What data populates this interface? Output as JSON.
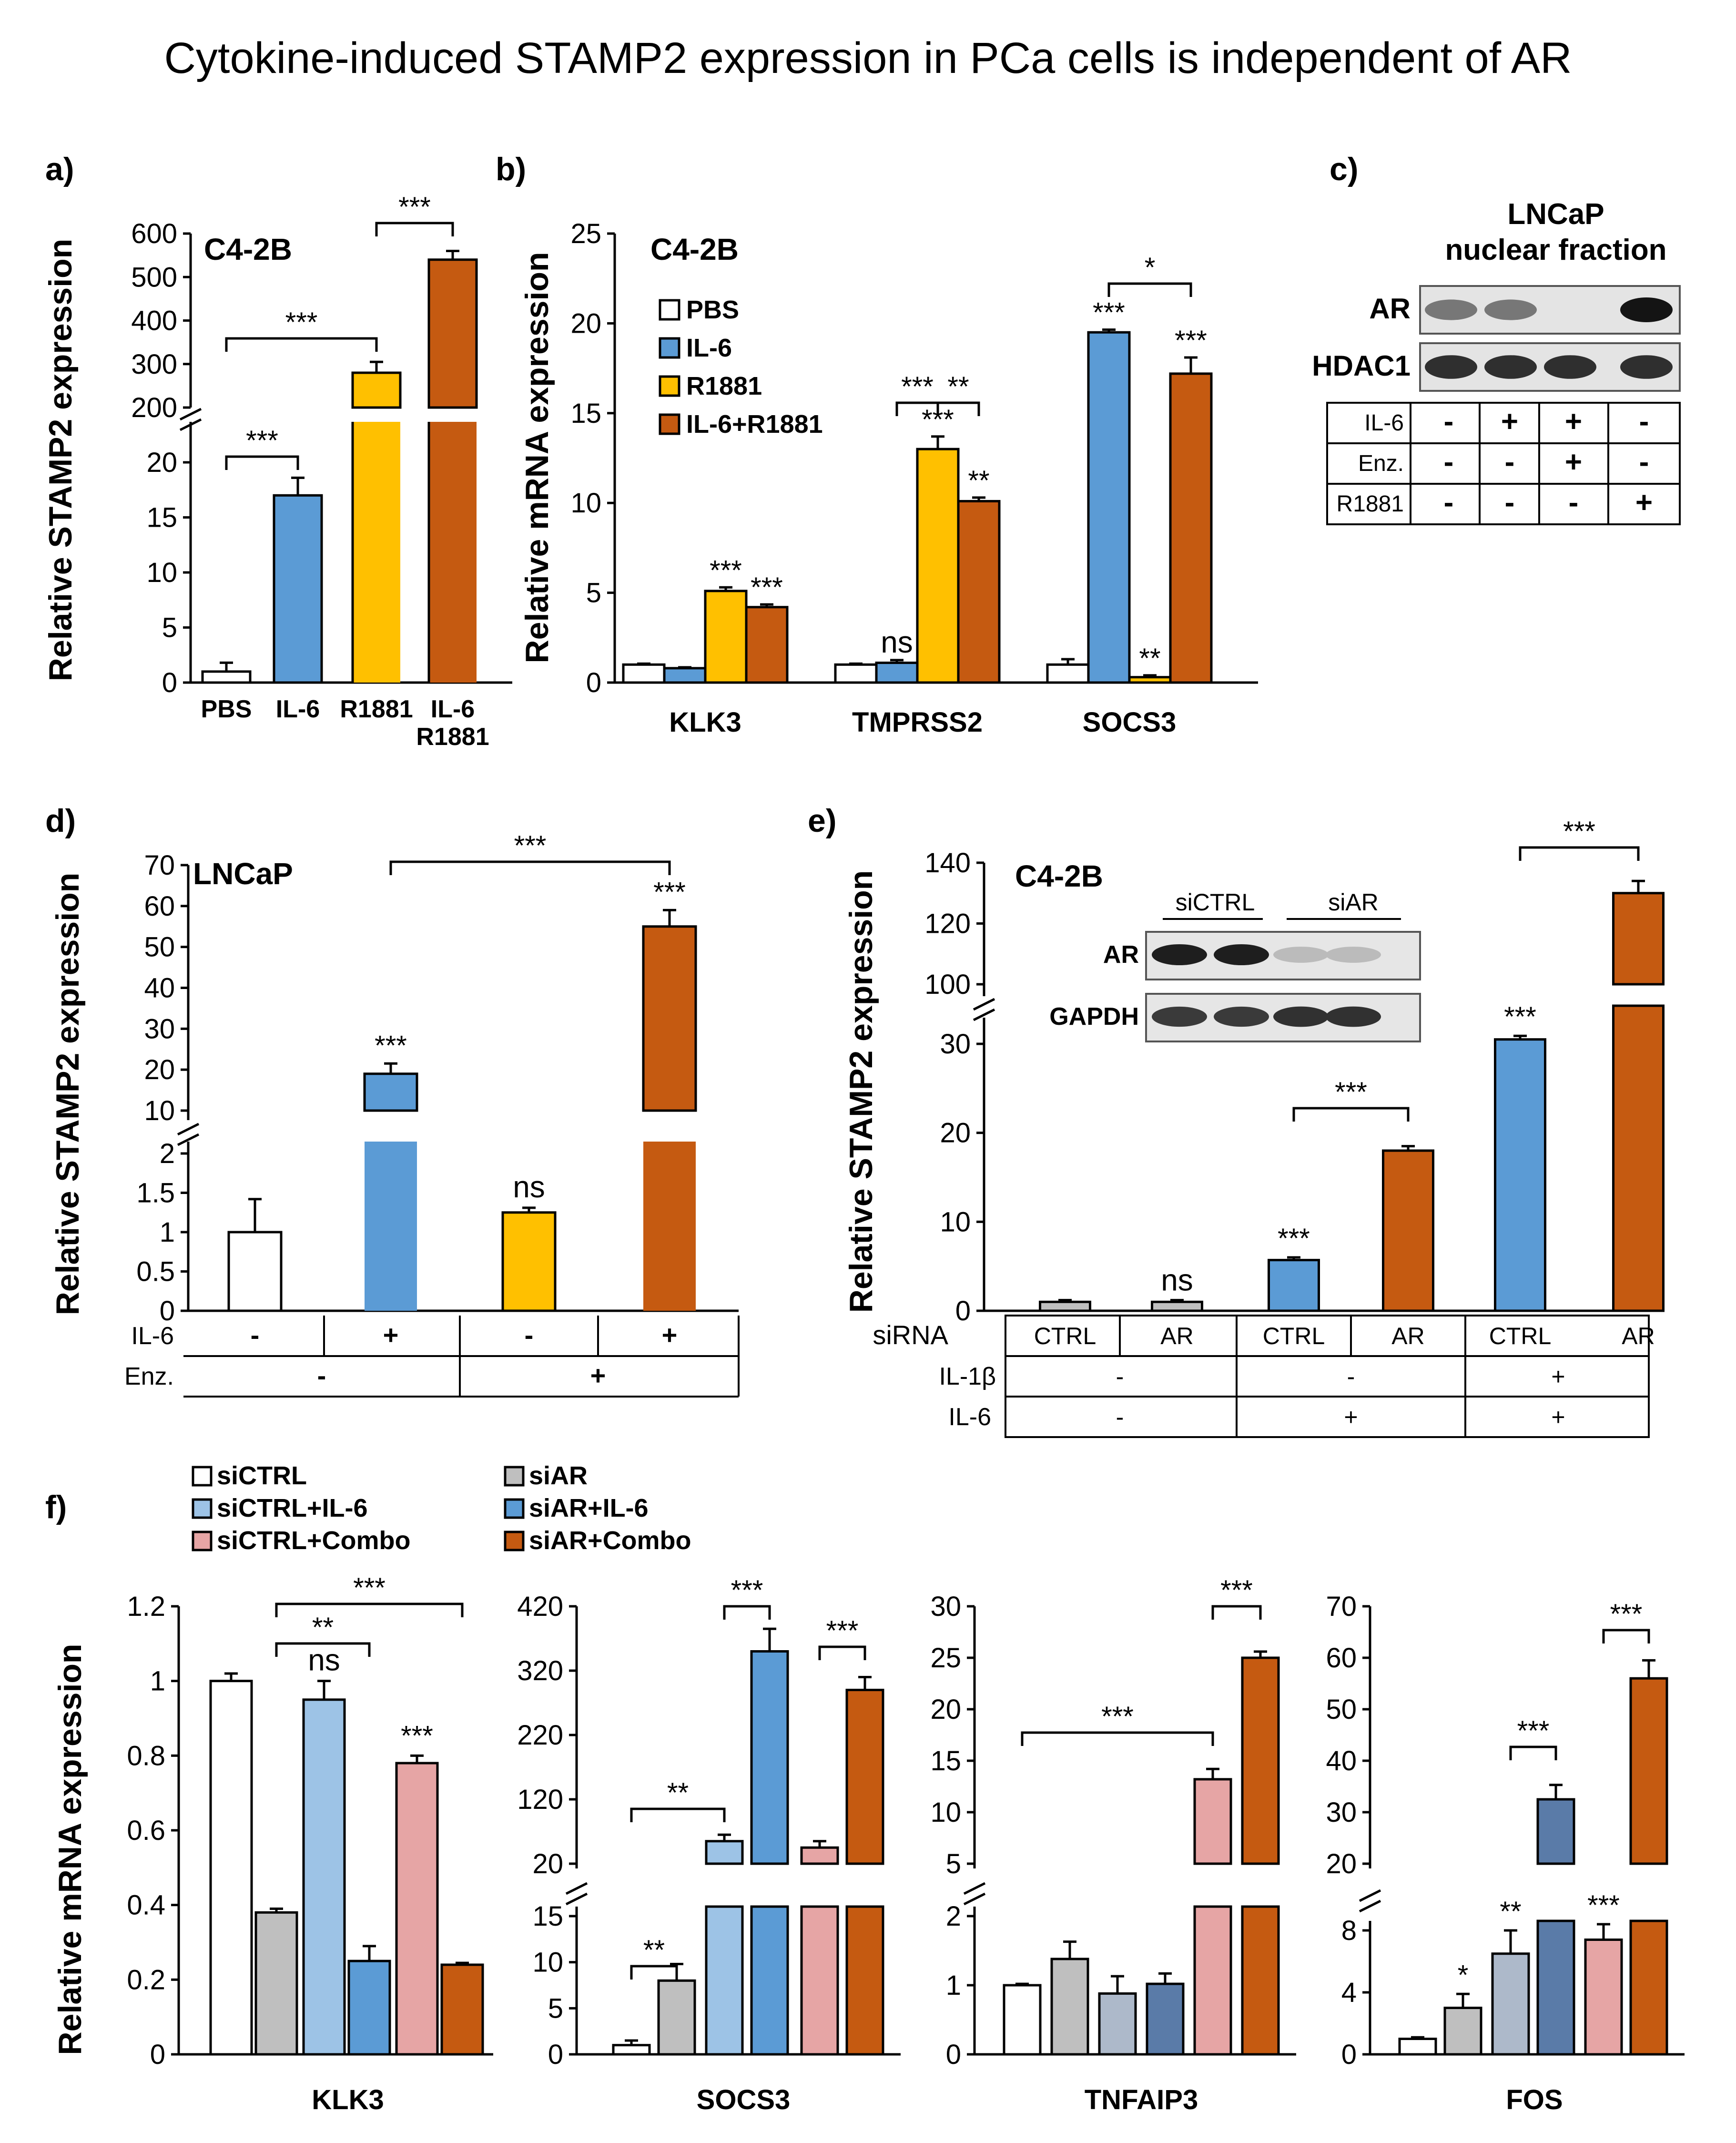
{
  "title": "Cytokine-induced STAMP2 expression in PCa cells is independent of AR",
  "colors": {
    "white": "#ffffff",
    "blue": "#5b9bd5",
    "yellow": "#ffc000",
    "orange": "#c55a11",
    "gray": "#bfbfbf",
    "lightblue": "#9dc3e6",
    "pink": "#e6a5a5",
    "darkblue": "#5a7ba8",
    "steel": "#adb9ca"
  },
  "chart_data": [
    {
      "panel": "a)",
      "type": "bar",
      "cell_line": "C4-2B",
      "ylabel": "Relative STAMP2 expression",
      "yaxis_break": true,
      "upper_ticks": [
        "200",
        "300",
        "400",
        "500",
        "600"
      ],
      "lower_ticks": [
        "0",
        "5",
        "10",
        "15",
        "20"
      ],
      "categories": [
        "PBS",
        "IL-6",
        "R1881",
        "IL-6\nR1881"
      ],
      "category_labels": [
        [
          "PBS"
        ],
        [
          "IL-6"
        ],
        [
          "R1881"
        ],
        [
          "IL-6",
          "R1881"
        ]
      ],
      "values": [
        1,
        17,
        280,
        540
      ],
      "errors": [
        0.8,
        1.6,
        25,
        20
      ],
      "colors": [
        "#ffffff",
        "#5b9bd5",
        "#ffc000",
        "#c55a11"
      ],
      "significance": [
        {
          "label": "***",
          "between": [
            "PBS",
            "IL-6"
          ]
        },
        {
          "label": "***",
          "between": [
            "PBS",
            "R1881"
          ]
        },
        {
          "label": "***",
          "between": [
            "R1881",
            "IL-6 R1881"
          ]
        }
      ]
    },
    {
      "panel": "b)",
      "type": "bar",
      "cell_line": "C4-2B",
      "ylabel": "Relative mRNA expression",
      "ylim": [
        0,
        25
      ],
      "yticks": [
        "0",
        "5",
        "10",
        "15",
        "20",
        "25"
      ],
      "categories": [
        "KLK3",
        "TMPRSS2",
        "SOCS3"
      ],
      "series": [
        {
          "name": "PBS",
          "color": "#ffffff",
          "values": [
            1.0,
            1.0,
            1.0
          ],
          "errors": [
            0.05,
            0.05,
            0.3
          ]
        },
        {
          "name": "IL-6",
          "color": "#5b9bd5",
          "values": [
            0.8,
            1.1,
            19.5
          ],
          "errors": [
            0.05,
            0.15,
            0.15
          ]
        },
        {
          "name": "R1881",
          "color": "#ffc000",
          "values": [
            5.1,
            13.0,
            0.3
          ],
          "errors": [
            0.2,
            0.7,
            0.1
          ]
        },
        {
          "name": "IL-6+R1881",
          "color": "#c55a11",
          "values": [
            4.2,
            10.1,
            17.2
          ],
          "errors": [
            0.15,
            0.2,
            0.9
          ]
        }
      ],
      "bar_labels": [
        [
          "",
          "",
          "***",
          "***"
        ],
        [
          "",
          "ns",
          "***",
          "**"
        ],
        [
          "",
          "***",
          "**",
          "***"
        ]
      ],
      "significance": [
        {
          "label": "***",
          "between": [
            "TMPRSS2 IL-6",
            "TMPRSS2 R1881"
          ]
        },
        {
          "label": "**",
          "between": [
            "TMPRSS2 R1881",
            "TMPRSS2 IL-6+R1881"
          ]
        },
        {
          "label": "*",
          "between": [
            "SOCS3 IL-6",
            "SOCS3 IL-6+R1881"
          ]
        }
      ]
    },
    {
      "panel": "c)",
      "type": "western_blot",
      "title_lines": [
        "LNCaP",
        "nuclear fraction"
      ],
      "bands": [
        {
          "label": "AR",
          "intensities": [
            0.45,
            0.45,
            0.0,
            1.0
          ]
        },
        {
          "label": "HDAC1",
          "intensities": [
            0.85,
            0.85,
            0.85,
            0.85
          ]
        }
      ],
      "treatments": [
        {
          "name": "IL-6",
          "values": [
            "-",
            "+",
            "+",
            "-"
          ]
        },
        {
          "name": "Enz.",
          "values": [
            "-",
            "-",
            "+",
            "-"
          ]
        },
        {
          "name": "R1881",
          "values": [
            "-",
            "-",
            "-",
            "+"
          ]
        }
      ]
    },
    {
      "panel": "d)",
      "type": "bar",
      "cell_line": "LNCaP",
      "ylabel": "Relative STAMP2 expression",
      "yaxis_break": true,
      "upper_ticks": [
        "10",
        "20",
        "30",
        "40",
        "50",
        "60",
        "70"
      ],
      "lower_ticks": [
        "0",
        "0.5",
        "1",
        "1.5",
        "2"
      ],
      "values": [
        1.0,
        19,
        1.25,
        55
      ],
      "errors": [
        0.42,
        2.5,
        0.06,
        4
      ],
      "colors": [
        "#ffffff",
        "#5b9bd5",
        "#ffc000",
        "#c55a11"
      ],
      "bar_labels": [
        "",
        "***",
        "ns",
        "***"
      ],
      "significance": [
        {
          "label": "***",
          "between": [
            "bar2",
            "bar4"
          ]
        }
      ],
      "treatments": [
        {
          "name": "IL-6",
          "values": [
            "-",
            "+",
            "-",
            "+"
          ]
        },
        {
          "name": "Enz.",
          "values": [
            "-",
            "+"
          ]
        }
      ]
    },
    {
      "panel": "e)",
      "type": "bar",
      "cell_line": "C4-2B",
      "ylabel": "Relative STAMP2 expression",
      "yaxis_break": true,
      "upper_ticks": [
        "100",
        "120",
        "140"
      ],
      "lower_ticks": [
        "0",
        "10",
        "20",
        "30"
      ],
      "values": [
        1.0,
        1.0,
        5.7,
        18.0,
        30.5,
        130
      ],
      "errors": [
        0.2,
        0.2,
        0.3,
        0.5,
        0.4,
        4
      ],
      "colors": [
        "#bfbfbf",
        "#bfbfbf",
        "#5b9bd5",
        "#c55a11",
        "#5b9bd5",
        "#c55a11"
      ],
      "bar_labels": [
        "",
        "ns",
        "***",
        "",
        "***",
        ""
      ],
      "significance": [
        {
          "label": "***",
          "between": [
            "bar3",
            "bar4"
          ]
        },
        {
          "label": "***",
          "between": [
            "bar5",
            "bar6"
          ]
        }
      ],
      "inset_blot": {
        "groups": [
          "siCTRL",
          "siAR"
        ],
        "bands": [
          {
            "label": "AR",
            "intensities": [
              1.0,
              1.0,
              0.15,
              0.15
            ]
          },
          {
            "label": "GAPDH",
            "intensities": [
              0.85,
              0.85,
              0.9,
              0.9
            ]
          }
        ]
      },
      "treatments": [
        {
          "name": "siRNA",
          "values": [
            "CTRL",
            "AR",
            "CTRL",
            "AR",
            "CTRL",
            "AR"
          ]
        },
        {
          "name": "IL-1β",
          "values": [
            "-",
            "-",
            "+"
          ]
        },
        {
          "name": "IL-6",
          "values": [
            "-",
            "+",
            "+"
          ]
        }
      ]
    },
    {
      "panel": "f)",
      "type": "bar",
      "ylabel": "Relative mRNA expression",
      "legend": [
        {
          "name": "siCTRL",
          "color": "#ffffff"
        },
        {
          "name": "siCTRL+IL-6",
          "color": "#9dc3e6"
        },
        {
          "name": "siCTRL+Combo",
          "color": "#e6a5a5"
        },
        {
          "name": "siAR",
          "color": "#bfbfbf"
        },
        {
          "name": "siAR+IL-6",
          "color": "#5b9bd5"
        },
        {
          "name": "siAR+Combo",
          "color": "#c55a11"
        }
      ],
      "subcharts": [
        {
          "gene": "KLK3",
          "yticks": [
            "0",
            "0.2",
            "0.4",
            "0.6",
            "0.8",
            "1",
            "1.2"
          ],
          "ylim": [
            0,
            1.2
          ],
          "values": [
            1.0,
            0.38,
            0.95,
            0.25,
            0.78,
            0.24
          ],
          "errors": [
            0.02,
            0.01,
            0.05,
            0.04,
            0.02,
            0.005
          ],
          "colors": [
            "#ffffff",
            "#bfbfbf",
            "#9dc3e6",
            "#5b9bd5",
            "#e6a5a5",
            "#c55a11"
          ],
          "bar_labels": [
            "",
            "",
            "ns",
            "",
            "***",
            ""
          ],
          "significance": [
            {
              "label": "**",
              "between": [
                "siAR",
                "siAR+IL-6"
              ]
            },
            {
              "label": "***",
              "between": [
                "siAR",
                "siAR+Combo"
              ]
            }
          ]
        },
        {
          "gene": "SOCS3",
          "upper_ticks": [
            "20",
            "120",
            "220",
            "320",
            "420"
          ],
          "lower_ticks": [
            "0",
            "5",
            "10",
            "15"
          ],
          "values": [
            1.0,
            8.0,
            55,
            350,
            45,
            290
          ],
          "errors": [
            0.5,
            1.8,
            10,
            35,
            10,
            20
          ],
          "colors": [
            "#ffffff",
            "#bfbfbf",
            "#9dc3e6",
            "#5b9bd5",
            "#e6a5a5",
            "#c55a11"
          ],
          "significance": [
            {
              "label": "**",
              "between": [
                "siCTRL",
                "siAR"
              ]
            },
            {
              "label": "**",
              "between": [
                "siCTRL",
                "siCTRL+IL-6"
              ]
            },
            {
              "label": "***",
              "between": [
                "siCTRL+IL-6",
                "siAR+IL-6"
              ]
            },
            {
              "label": "***",
              "between": [
                "siCTRL+Combo",
                "siAR+Combo"
              ]
            }
          ]
        },
        {
          "gene": "TNFAIP3",
          "upper_ticks": [
            "5",
            "10",
            "15",
            "20",
            "25",
            "30"
          ],
          "lower_ticks": [
            "0",
            "1",
            "2"
          ],
          "values": [
            1.0,
            1.38,
            0.88,
            1.02,
            13.2,
            25.0
          ],
          "errors": [
            0.02,
            0.25,
            0.25,
            0.15,
            1.0,
            0.6
          ],
          "colors": [
            "#ffffff",
            "#bfbfbf",
            "#adb9ca",
            "#5a7ba8",
            "#e6a5a5",
            "#c55a11"
          ],
          "significance": [
            {
              "label": "***",
              "between": [
                "siCTRL",
                "siCTRL+Combo"
              ]
            },
            {
              "label": "***",
              "between": [
                "siCTRL+Combo",
                "siAR+Combo"
              ]
            }
          ]
        },
        {
          "gene": "FOS",
          "upper_ticks": [
            "20",
            "30",
            "40",
            "50",
            "60",
            "70"
          ],
          "lower_ticks": [
            "0",
            "4",
            "8"
          ],
          "values": [
            1.0,
            3.0,
            6.5,
            32.5,
            7.4,
            56
          ],
          "errors": [
            0.1,
            0.9,
            1.5,
            2.8,
            1.0,
            3.5
          ],
          "colors": [
            "#ffffff",
            "#bfbfbf",
            "#adb9ca",
            "#5a7ba8",
            "#e6a5a5",
            "#c55a11"
          ],
          "bar_labels": [
            "",
            "*",
            "**",
            "",
            "***",
            ""
          ],
          "significance": [
            {
              "label": "***",
              "between": [
                "siCTRL+IL-6",
                "siAR+IL-6"
              ]
            },
            {
              "label": "***",
              "between": [
                "siCTRL+Combo",
                "siAR+Combo"
              ]
            }
          ]
        }
      ]
    }
  ]
}
